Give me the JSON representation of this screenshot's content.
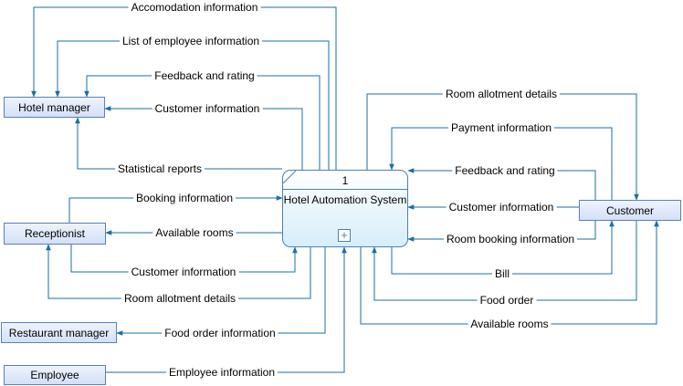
{
  "diagram": {
    "process": {
      "id": "1",
      "name": "Hotel Automation System",
      "sub_icon": "plus-icon"
    },
    "entities": [
      {
        "key": "hotel_manager",
        "label": "Hotel manager"
      },
      {
        "key": "receptionist",
        "label": "Receptionist"
      },
      {
        "key": "restaurant_manager",
        "label": "Restaurant manager"
      },
      {
        "key": "employee",
        "label": "Employee"
      },
      {
        "key": "customer",
        "label": "Customer"
      }
    ],
    "flows": [
      {
        "label": "Accomodation information",
        "from": "Hotel Automation System",
        "to": "Hotel manager"
      },
      {
        "label": "List of employee information",
        "from": "Hotel Automation System",
        "to": "Hotel manager"
      },
      {
        "label": "Feedback and rating",
        "from": "Hotel Automation System",
        "to": "Hotel manager"
      },
      {
        "label": "Customer information",
        "from": "Hotel Automation System",
        "to": "Hotel manager"
      },
      {
        "label": "Statistical reports",
        "from": "Hotel Automation System",
        "to": "Hotel manager"
      },
      {
        "label": "Booking information",
        "from": "Receptionist",
        "to": "Hotel Automation System"
      },
      {
        "label": "Available rooms",
        "from": "Hotel Automation System",
        "to": "Receptionist"
      },
      {
        "label": "Customer information",
        "from": "Receptionist",
        "to": "Hotel Automation System"
      },
      {
        "label": "Room allotment details",
        "from": "Hotel Automation System",
        "to": "Receptionist"
      },
      {
        "label": "Food order information",
        "from": "Hotel Automation System",
        "to": "Restaurant manager"
      },
      {
        "label": "Employee information",
        "from": "Employee",
        "to": "Hotel Automation System"
      },
      {
        "label": "Room allotment details",
        "from": "Hotel Automation System",
        "to": "Customer"
      },
      {
        "label": "Payment information",
        "from": "Customer",
        "to": "Hotel Automation System"
      },
      {
        "label": "Feedback and rating",
        "from": "Customer",
        "to": "Hotel Automation System"
      },
      {
        "label": "Customer information",
        "from": "Customer",
        "to": "Hotel Automation System"
      },
      {
        "label": "Room booking information",
        "from": "Customer",
        "to": "Hotel Automation System"
      },
      {
        "label": "Bill",
        "from": "Hotel Automation System",
        "to": "Customer"
      },
      {
        "label": "Food order",
        "from": "Customer",
        "to": "Hotel Automation System"
      },
      {
        "label": "Available rooms",
        "from": "Customer",
        "to": "Hotel Automation System"
      }
    ],
    "colors": {
      "line": "#1a6fa6",
      "entity_border": "#5b7fb8",
      "process_border": "#4f7fb0"
    }
  }
}
